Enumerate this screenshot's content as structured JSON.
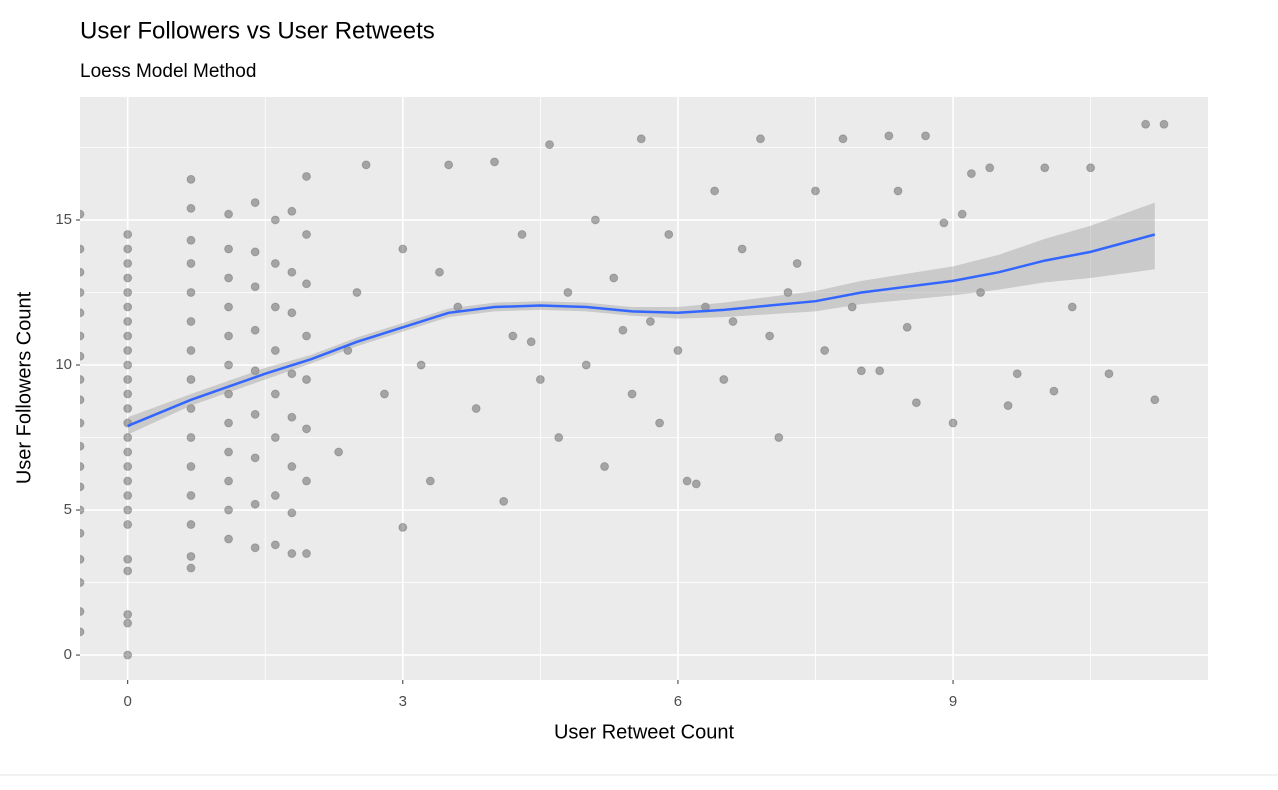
{
  "chart_data": {
    "type": "scatter",
    "title": "User Followers vs User Retweets",
    "subtitle": "Loess Model Method",
    "x_label": "User Retweet Count",
    "y_label": "User Followers Count",
    "xlim": [
      -0.52,
      11.78
    ],
    "ylim": [
      -0.86,
      19.24
    ],
    "xticks": [
      0,
      3,
      6,
      9
    ],
    "yticks": [
      0,
      5,
      10,
      15
    ],
    "xminor": [
      1.5,
      4.5,
      7.5,
      10.5
    ],
    "yminor": [
      2.5,
      7.5,
      12.5,
      17.5
    ],
    "grid": true,
    "panel_color": "#ebebeb",
    "points": {
      "color": "#000000",
      "alpha": 0.3,
      "x": [
        -0.52,
        -0.52,
        -0.52,
        -0.52,
        -0.52,
        -0.52,
        -0.52,
        -0.52,
        -0.52,
        -0.52,
        -0.52,
        -0.52,
        -0.52,
        -0.52,
        -0.52,
        -0.52,
        -0.52,
        -0.52,
        -0.52,
        0,
        0,
        0,
        0,
        0,
        0,
        0,
        0,
        0,
        0,
        0,
        0,
        0,
        0,
        0,
        0,
        0,
        0,
        0,
        0,
        0,
        0,
        0,
        0,
        0,
        0,
        0.69,
        0.69,
        0.69,
        0.69,
        0.69,
        0.69,
        0.69,
        0.69,
        0.69,
        0.69,
        0.69,
        0.69,
        0.69,
        0.69,
        0.69,
        1.1,
        1.1,
        1.1,
        1.1,
        1.1,
        1.1,
        1.1,
        1.1,
        1.1,
        1.1,
        1.1,
        1.1,
        1.39,
        1.39,
        1.39,
        1.39,
        1.39,
        1.39,
        1.39,
        1.39,
        1.39,
        1.61,
        1.61,
        1.61,
        1.61,
        1.61,
        1.61,
        1.61,
        1.61,
        1.79,
        1.79,
        1.79,
        1.79,
        1.79,
        1.79,
        1.79,
        1.79,
        1.95,
        1.95,
        1.95,
        1.95,
        1.95,
        1.95,
        1.95,
        1.95,
        2.3,
        2.4,
        2.5,
        2.6,
        2.8,
        3.0,
        3.0,
        3.2,
        3.3,
        3.4,
        3.5,
        3.6,
        3.8,
        4.0,
        4.1,
        4.2,
        4.3,
        4.4,
        4.5,
        4.6,
        4.7,
        4.8,
        5.0,
        5.1,
        5.2,
        5.3,
        5.4,
        5.5,
        5.6,
        5.7,
        5.8,
        5.9,
        6.0,
        6.1,
        6.2,
        6.3,
        6.4,
        6.5,
        6.6,
        6.7,
        6.9,
        7.0,
        7.1,
        7.2,
        7.3,
        7.5,
        7.6,
        7.8,
        7.9,
        8.0,
        8.2,
        8.3,
        8.4,
        8.5,
        8.6,
        8.7,
        8.9,
        9.0,
        9.1,
        9.2,
        9.3,
        9.4,
        9.6,
        9.7,
        10.0,
        10.1,
        10.3,
        10.5,
        10.7,
        11.1,
        11.2,
        11.3
      ],
      "y": [
        0.8,
        1.5,
        2.5,
        3.3,
        4.2,
        5,
        5.8,
        6.5,
        7.2,
        8,
        8.8,
        9.5,
        10.3,
        11,
        11.8,
        12.5,
        13.2,
        14,
        15.2,
        0,
        1.1,
        1.4,
        2.9,
        3.3,
        4.5,
        5,
        5.5,
        6,
        6.5,
        7,
        7.5,
        8,
        8.5,
        9,
        9.5,
        10,
        10.5,
        11,
        11.5,
        12,
        12.5,
        13,
        13.5,
        14,
        14.5,
        3,
        3.4,
        4.5,
        5.5,
        6.5,
        7.5,
        8.5,
        9.5,
        10.5,
        11.5,
        12.5,
        13.5,
        14.3,
        15.4,
        16.4,
        4,
        5,
        6,
        7,
        8,
        9,
        10,
        11,
        12,
        13,
        14,
        15.2,
        3.7,
        5.2,
        6.8,
        8.3,
        9.8,
        11.2,
        12.7,
        13.9,
        15.6,
        3.8,
        5.5,
        7.5,
        9,
        10.5,
        12,
        13.5,
        15,
        3.5,
        4.9,
        6.5,
        8.2,
        9.7,
        11.8,
        13.2,
        15.3,
        3.5,
        6,
        7.8,
        9.5,
        11,
        12.8,
        14.5,
        16.5,
        7,
        10.5,
        12.5,
        16.9,
        9,
        4.4,
        14,
        10,
        6,
        13.2,
        16.9,
        12,
        8.5,
        17,
        5.3,
        11,
        14.5,
        10.8,
        9.5,
        17.6,
        7.5,
        12.5,
        10,
        15,
        6.5,
        13,
        11.2,
        9,
        17.8,
        11.5,
        8,
        14.5,
        10.5,
        6,
        5.9,
        12,
        16,
        9.5,
        11.5,
        14,
        17.8,
        11,
        7.5,
        12.5,
        13.5,
        16,
        10.5,
        17.8,
        12,
        9.8,
        9.8,
        17.9,
        16,
        11.3,
        8.7,
        17.9,
        14.9,
        8,
        15.2,
        16.6,
        12.5,
        16.8,
        8.6,
        9.7,
        16.8,
        9.1,
        12,
        16.8,
        9.7,
        18.3,
        8.8,
        18.3
      ]
    },
    "smooth": {
      "color": "#3366ff",
      "band_color": "#999999",
      "x": [
        0,
        0.69,
        1.5,
        2,
        2.5,
        3,
        3.5,
        4,
        4.5,
        5,
        5.5,
        6,
        6.5,
        7,
        7.5,
        8,
        8.5,
        9,
        9.5,
        10,
        10.5,
        11.2
      ],
      "y": [
        7.9,
        8.8,
        9.7,
        10.2,
        10.8,
        11.3,
        11.8,
        12.0,
        12.05,
        12.0,
        11.85,
        11.8,
        11.9,
        12.05,
        12.2,
        12.5,
        12.7,
        12.9,
        13.2,
        13.6,
        13.9,
        14.5
      ],
      "lower": [
        7.6,
        8.6,
        9.5,
        10.05,
        10.65,
        11.15,
        11.65,
        11.85,
        11.9,
        11.85,
        11.7,
        11.6,
        11.65,
        11.75,
        11.85,
        12.1,
        12.25,
        12.4,
        12.6,
        12.85,
        13.0,
        13.3
      ],
      "upper": [
        8.2,
        9.0,
        9.9,
        10.35,
        10.95,
        11.45,
        11.95,
        12.15,
        12.2,
        12.15,
        12.0,
        12.0,
        12.15,
        12.35,
        12.55,
        12.9,
        13.15,
        13.4,
        13.8,
        14.35,
        14.8,
        15.6
      ]
    }
  }
}
